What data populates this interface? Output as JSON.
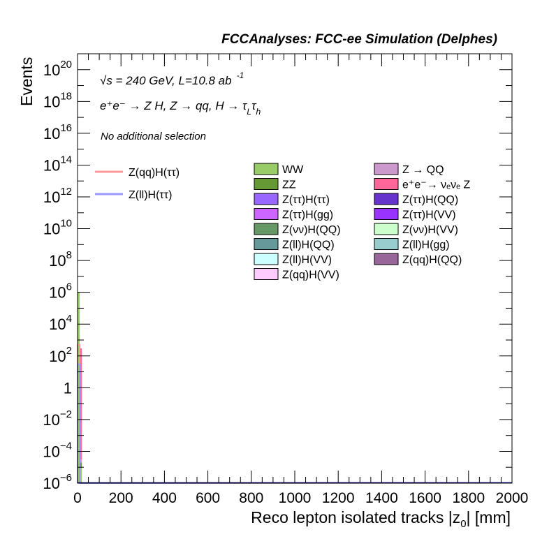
{
  "chart_data": {
    "type": "bar",
    "title": "FCCAnalyses: FCC-ee Simulation (Delphes)",
    "xlabel": "Reco lepton isolated tracks |z",
    "xlabel_sub": "0",
    "xlabel_suffix": "| [mm]",
    "ylabel": "Events",
    "xlim": [
      0,
      2000
    ],
    "ylim_exp": [
      -6,
      21
    ],
    "log_y": true,
    "x_ticks": [
      "0",
      "200",
      "400",
      "600",
      "800",
      "1000",
      "1200",
      "1400",
      "1600",
      "1800",
      "2000"
    ],
    "x_tick_values": [
      0,
      200,
      400,
      600,
      800,
      1000,
      1200,
      1400,
      1600,
      1800,
      2000
    ],
    "y_ticks": [
      {
        "exp": -6,
        "base": "10",
        "sup": "−6"
      },
      {
        "exp": -4,
        "base": "10",
        "sup": "−4"
      },
      {
        "exp": -2,
        "base": "10",
        "sup": "−2"
      },
      {
        "exp": 0,
        "base": "1",
        "sup": ""
      },
      {
        "exp": 2,
        "base": "10",
        "sup": "2"
      },
      {
        "exp": 4,
        "base": "10",
        "sup": "4"
      },
      {
        "exp": 6,
        "base": "10",
        "sup": "6"
      },
      {
        "exp": 8,
        "base": "10",
        "sup": "8"
      },
      {
        "exp": 10,
        "base": "10",
        "sup": "10"
      },
      {
        "exp": 12,
        "base": "10",
        "sup": "12"
      },
      {
        "exp": 14,
        "base": "10",
        "sup": "14"
      },
      {
        "exp": 16,
        "base": "10",
        "sup": "16"
      },
      {
        "exp": 18,
        "base": "10",
        "sup": "18"
      },
      {
        "exp": 20,
        "base": "10",
        "sup": "20"
      }
    ],
    "annotations": {
      "energy": "√s = 240 GeV, L=10.8 ab",
      "energy_sup": "-1",
      "process": "e⁺e⁻ → Z H, Z → qq, H → τ",
      "process_sub1": "L",
      "process_tau": "τ",
      "process_sub2": "h",
      "selection": "No additional selection"
    },
    "bin_width": 10,
    "stack": [
      {
        "name": "WW",
        "color": "#99cc66",
        "bins": [
          {
            "x0": 0,
            "value": 1000000
          },
          {
            "x0": 10,
            "value": 1e-05
          }
        ]
      },
      {
        "name": "ZZ",
        "color": "#669933",
        "bins": [
          {
            "x0": 0,
            "value": 70000
          },
          {
            "x0": 10,
            "value": 1e-05
          }
        ]
      },
      {
        "name": "Z → QQ",
        "color": "#cc99cc",
        "bins": [
          {
            "x0": 0,
            "value": 5000
          },
          {
            "x0": 10,
            "value": 1e-05
          }
        ]
      },
      {
        "name": "e⁺e⁻→ νₑνₑ Z",
        "color": "#ff6699",
        "bins": [
          {
            "x0": 0,
            "value": 300
          },
          {
            "x0": 10,
            "value": 300
          }
        ]
      },
      {
        "name": "Z(ττ)H(ττ)",
        "color": "#9966ff",
        "bins": [
          {
            "x0": 0,
            "value": 50
          },
          {
            "x0": 10,
            "value": 0.01
          }
        ]
      },
      {
        "name": "Z(ττ)H(QQ)",
        "color": "#6633cc",
        "bins": [
          {
            "x0": 0,
            "value": 10
          },
          {
            "x0": 10,
            "value": 0.001
          }
        ]
      },
      {
        "name": "Z(ττ)H(gg)",
        "color": "#cc66ff",
        "bins": [
          {
            "x0": 0,
            "value": 3
          },
          {
            "x0": 10,
            "value": 0.0001
          }
        ]
      },
      {
        "name": "Z(ττ)H(VV)",
        "color": "#9933ff",
        "bins": [
          {
            "x0": 0,
            "value": 1
          },
          {
            "x0": 10,
            "value": 1e-05
          }
        ]
      },
      {
        "name": "Z(νν)H(QQ)",
        "color": "#669966",
        "bins": [
          {
            "x0": 0,
            "value": 0.5
          },
          {
            "x0": 10,
            "value": 1e-05
          }
        ]
      },
      {
        "name": "Z(νν)H(VV)",
        "color": "#ccffcc",
        "bins": [
          {
            "x0": 0,
            "value": 0.05
          },
          {
            "x0": 10,
            "value": 1e-05
          }
        ]
      },
      {
        "name": "Z(ll)H(QQ)",
        "color": "#669999",
        "bins": [
          {
            "x0": 0,
            "value": 0.02
          },
          {
            "x0": 10,
            "value": 1e-05
          }
        ]
      },
      {
        "name": "Z(ll)H(gg)",
        "color": "#99cccc",
        "bins": [
          {
            "x0": 0,
            "value": 0.005
          },
          {
            "x0": 10,
            "value": 1e-05
          }
        ]
      },
      {
        "name": "Z(ll)H(VV)",
        "color": "#ccffff",
        "bins": [
          {
            "x0": 0,
            "value": 0.002
          },
          {
            "x0": 10,
            "value": 1e-05
          }
        ]
      },
      {
        "name": "Z(qq)H(QQ)",
        "color": "#996699",
        "bins": [
          {
            "x0": 0,
            "value": 0.001
          },
          {
            "x0": 10,
            "value": 1e-05
          }
        ]
      },
      {
        "name": "Z(qq)H(VV)",
        "color": "#ffccff",
        "bins": [
          {
            "x0": 0,
            "value": 0.0005
          },
          {
            "x0": 10,
            "value": 1e-05
          }
        ]
      }
    ],
    "signals": [
      {
        "name": "Z(qq)H(ττ)",
        "color": "#ff9999",
        "bins": [
          {
            "x0": 0,
            "value": 500
          },
          {
            "x0": 10,
            "value": 1e-06
          }
        ]
      },
      {
        "name": "Z(ll)H(ττ)",
        "color": "#9999ff",
        "bins": [
          {
            "x0": 0,
            "value": 30
          },
          {
            "x0": 10,
            "value": 1e-06
          }
        ]
      }
    ],
    "legend_signals": [
      {
        "label": "Z(qq)H(ττ)",
        "color": "#ff9999"
      },
      {
        "label": "Z(ll)H(ττ)",
        "color": "#9999ff"
      }
    ],
    "legend_col1": [
      {
        "label": "WW",
        "color": "#99cc66"
      },
      {
        "label": "ZZ",
        "color": "#669933"
      },
      {
        "label": "Z(ττ)H(ττ)",
        "color": "#9966ff"
      },
      {
        "label": "Z(ττ)H(gg)",
        "color": "#cc66ff"
      },
      {
        "label": "Z(νν)H(QQ)",
        "color": "#669966"
      },
      {
        "label": "Z(ll)H(QQ)",
        "color": "#669999"
      },
      {
        "label": "Z(ll)H(VV)",
        "color": "#ccffff"
      },
      {
        "label": "Z(qq)H(VV)",
        "color": "#ffccff"
      }
    ],
    "legend_col2": [
      {
        "label": "Z → QQ",
        "color": "#cc99cc"
      },
      {
        "label": "e⁺e⁻→ νₑνₑ Z",
        "color": "#ff6699"
      },
      {
        "label": "Z(ττ)H(QQ)",
        "color": "#6633cc"
      },
      {
        "label": "Z(ττ)H(VV)",
        "color": "#9933ff"
      },
      {
        "label": "Z(νν)H(VV)",
        "color": "#ccffcc"
      },
      {
        "label": "Z(ll)H(gg)",
        "color": "#99cccc"
      },
      {
        "label": "Z(qq)H(QQ)",
        "color": "#996699"
      }
    ]
  }
}
